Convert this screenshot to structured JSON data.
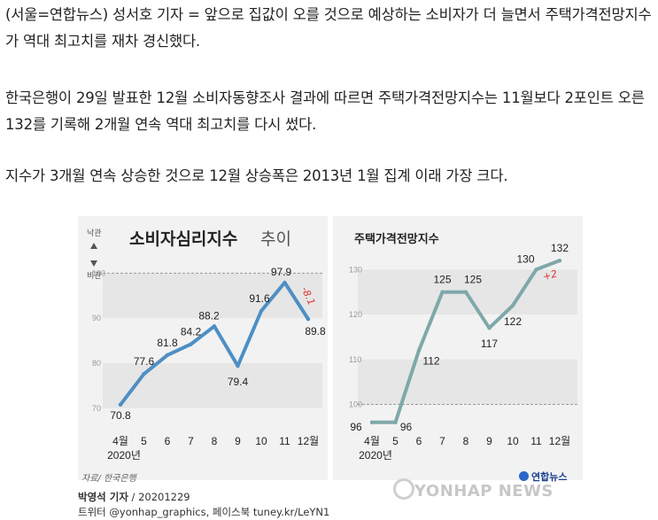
{
  "article": {
    "p1": "(서울=연합뉴스) 성서호 기자 = 앞으로 집값이 오를 것으로 예상하는 소비자가 더 늘면서 주택가격전망지수가 역대 최고치를 재차 경신했다.",
    "p2": "한국은행이 29일 발표한 12월 소비자동향조사 결과에 따르면 주택가격전망지수는 11월보다 2포인트 오른 132를 기록해 2개월 연속 역대 최고치를 다시 썼다.",
    "p3": "지수가 3개월 연속 상승한 것으로 12월 상승폭은 2013년 1월 집계 이래 가장 크다."
  },
  "graphic": {
    "source": "자료/ 한국은행",
    "credit_author": "박영석 기자",
    "credit_date": " / 20201229",
    "credit_social": "트위터 @yonhap_graphics, 페이스북 tuney.kr/LeYN1",
    "watermark": "YONHAP NEWS",
    "brand": "연합뉴스",
    "line_color": "#4d8fc4",
    "line_color_right": "#7fa8aa",
    "band_color": "#e6e6e6",
    "annotation_color": "#e03030"
  },
  "chart_data": [
    {
      "type": "line",
      "title": "소비자심리지수",
      "subtitle": "추이",
      "x": [
        "4월",
        "5",
        "6",
        "7",
        "8",
        "9",
        "10",
        "11",
        "12월"
      ],
      "x_group_label": "2020년",
      "values": [
        70.8,
        77.6,
        81.8,
        84.2,
        88.2,
        79.4,
        91.6,
        97.9,
        89.8
      ],
      "ylim": [
        68,
        104
      ],
      "yticks": [
        70,
        80,
        90,
        100
      ],
      "reference_line": 100,
      "reference_labels": {
        "above": "낙관",
        "below": "비관"
      },
      "annotation": "-8.1",
      "grid": false
    },
    {
      "type": "line",
      "title": "주택가격전망지수",
      "x": [
        "4월",
        "5",
        "6",
        "7",
        "8",
        "9",
        "10",
        "11",
        "12월"
      ],
      "x_group_label": "2020년",
      "values": [
        96,
        96,
        112,
        125,
        125,
        117,
        122,
        130,
        132
      ],
      "ylim": [
        93,
        134
      ],
      "yticks": [
        100,
        110,
        120,
        130
      ],
      "reference_line": 100,
      "annotation": "+2",
      "grid": false
    }
  ]
}
